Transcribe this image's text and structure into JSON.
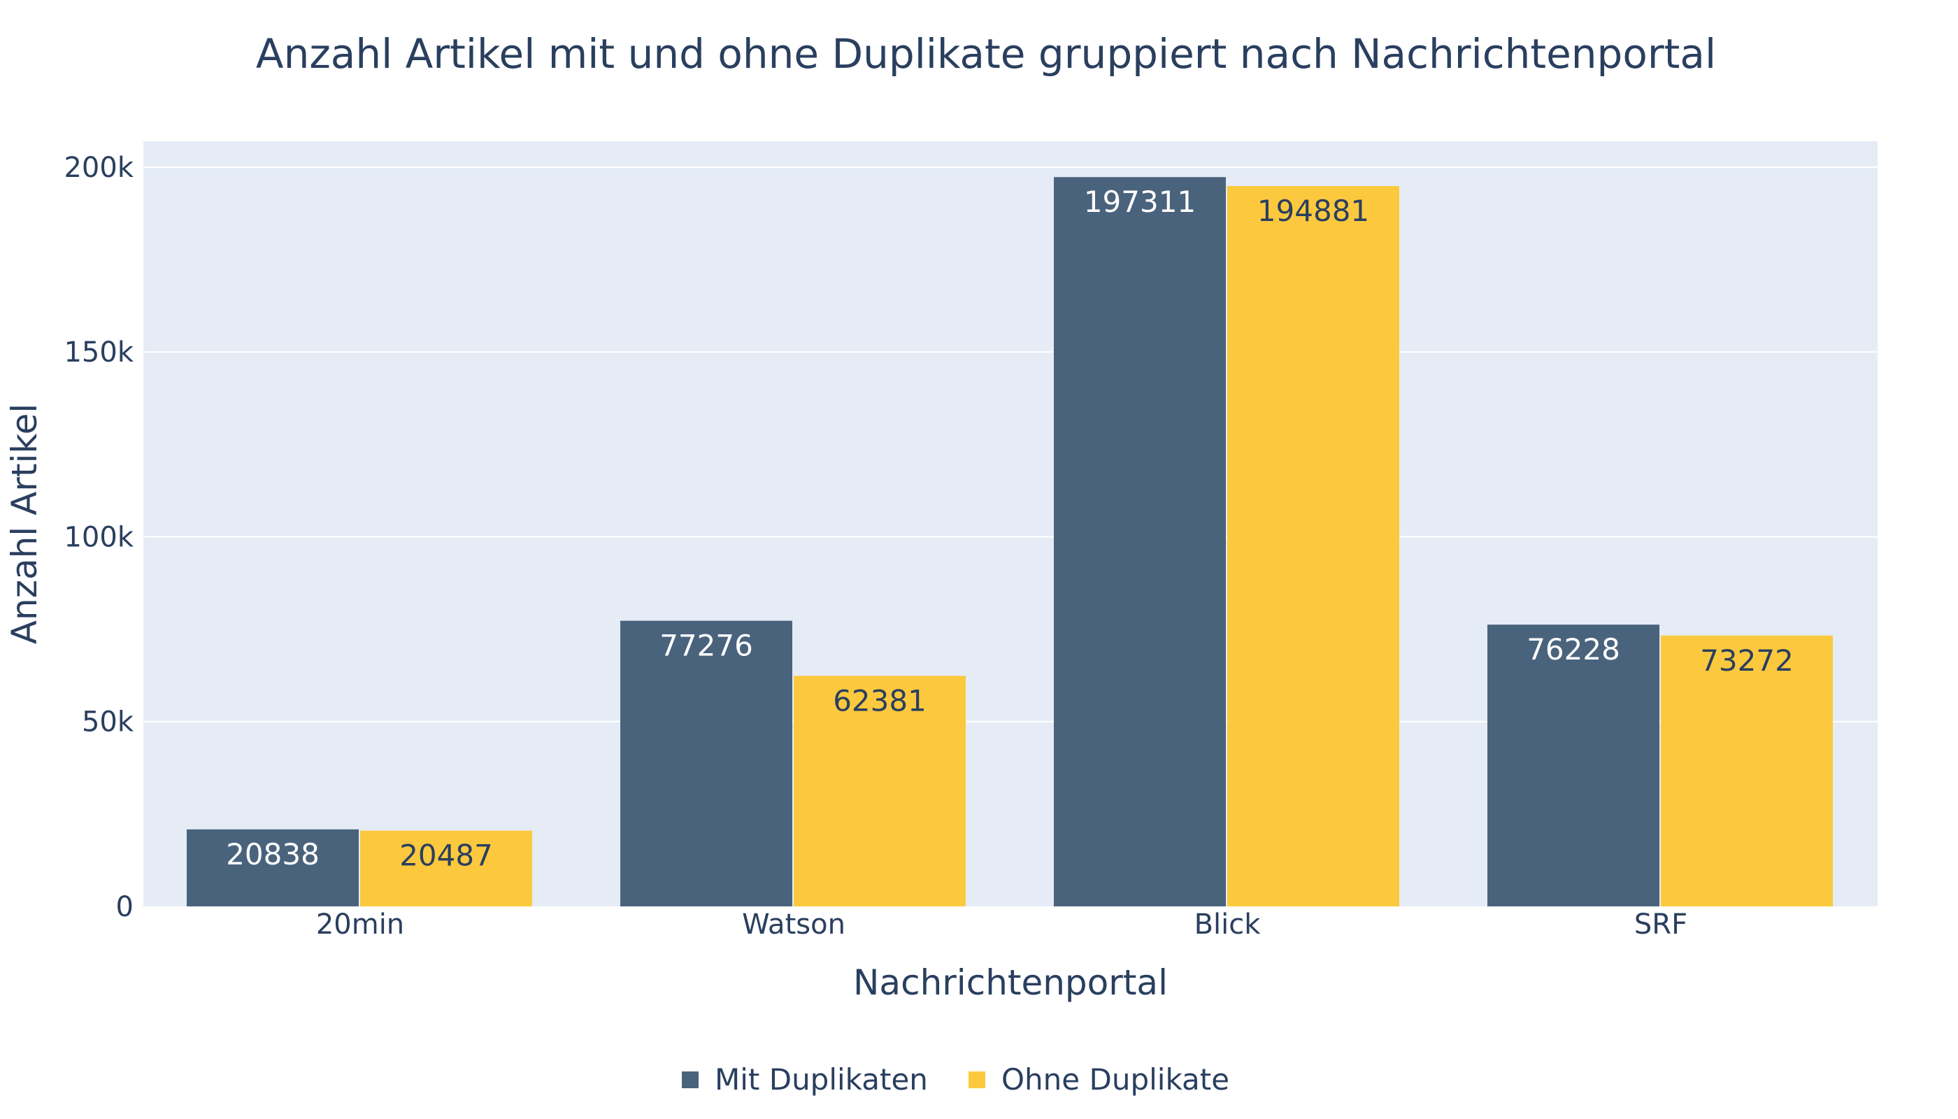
{
  "chart_data": {
    "type": "bar",
    "title": "Anzahl Artikel mit und ohne Duplikate gruppiert nach Nachrichtenportal",
    "xlabel": "Nachrichtenportal",
    "ylabel": "Anzahl Artikel",
    "categories": [
      "20min",
      "Watson",
      "Blick",
      "SRF"
    ],
    "series": [
      {
        "name": "Mit Duplikaten",
        "color": "#4a637d",
        "label_color": "#ffffff",
        "values": [
          20838,
          77276,
          197311,
          76228
        ]
      },
      {
        "name": "Ohne Duplikate",
        "color": "#fcc93e",
        "label_color": "#2a3f5f",
        "values": [
          20487,
          62381,
          194881,
          73272
        ]
      }
    ],
    "ylim": [
      0,
      207000
    ],
    "yticks": [
      {
        "value": 0,
        "label": "0"
      },
      {
        "value": 50000,
        "label": "50k"
      },
      {
        "value": 100000,
        "label": "100k"
      },
      {
        "value": 150000,
        "label": "150k"
      },
      {
        "value": 200000,
        "label": "200k"
      }
    ],
    "grid": true,
    "legend_position": "bottom-center",
    "plot_background": "#e5ecf6"
  }
}
